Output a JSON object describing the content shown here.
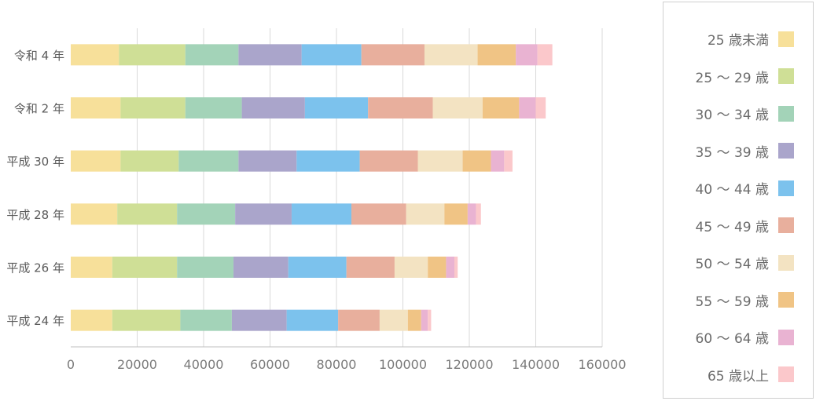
{
  "chart_data": {
    "type": "bar",
    "orientation": "horizontal",
    "stacked": true,
    "title": "",
    "xlabel": "",
    "ylabel": "",
    "xlim": [
      0,
      160000
    ],
    "x_ticks": [
      "0",
      "20000",
      "40000",
      "60000",
      "80000",
      "100000",
      "120000",
      "140000",
      "160000"
    ],
    "grid": "vertical",
    "legend_position": "right",
    "categories": [
      "令和 4 年",
      "令和 2 年",
      "平成 30 年",
      "平成 28 年",
      "平成 26 年",
      "平成 24 年"
    ],
    "series": [
      {
        "name": "25 歳未満",
        "color": "#f7e09a",
        "values": [
          14500,
          15000,
          15000,
          14000,
          12500,
          12500
        ]
      },
      {
        "name": "25 ～ 29 歳",
        "color": "#cfdf96",
        "values": [
          20000,
          19500,
          17500,
          18000,
          19500,
          20500
        ]
      },
      {
        "name": "30 ～ 34 歳",
        "color": "#a3d3b8",
        "values": [
          16000,
          17000,
          18000,
          17500,
          17000,
          15500
        ]
      },
      {
        "name": "35 ～ 39 歳",
        "color": "#aaa5cb",
        "values": [
          19000,
          19000,
          17500,
          17000,
          16500,
          16500
        ]
      },
      {
        "name": "40 ～ 44 歳",
        "color": "#7cc2ed",
        "values": [
          18000,
          19000,
          19000,
          18000,
          17500,
          15500
        ]
      },
      {
        "name": "45 ～ 49 歳",
        "color": "#e8af9d",
        "values": [
          19000,
          19500,
          17500,
          16500,
          14500,
          12500
        ]
      },
      {
        "name": "50 ～ 54 歳",
        "color": "#f3e3c2",
        "values": [
          16000,
          15000,
          13500,
          11500,
          10000,
          8500
        ]
      },
      {
        "name": "55 ～ 59 歳",
        "color": "#f0c485",
        "values": [
          11500,
          11000,
          8500,
          7000,
          5500,
          4000
        ]
      },
      {
        "name": "60 ～ 64 歳",
        "color": "#e9b3d2",
        "values": [
          6500,
          5000,
          4000,
          2500,
          2500,
          2000
        ]
      },
      {
        "name": "65 歳以上",
        "color": "#fbc8cb",
        "values": [
          4500,
          3000,
          2500,
          1500,
          1000,
          1000
        ]
      }
    ]
  }
}
